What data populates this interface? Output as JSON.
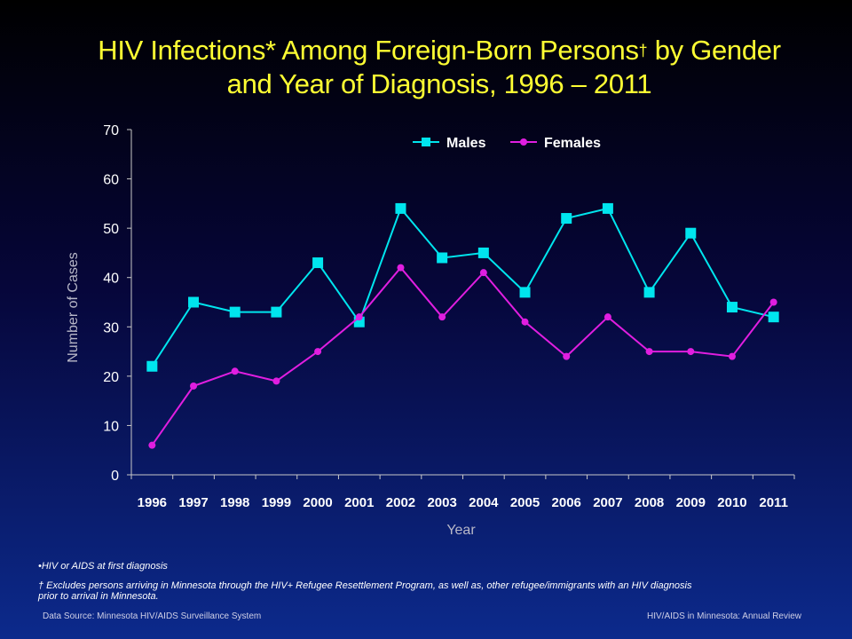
{
  "title": {
    "line1_pre": "HIV Infections* Among Foreign-Born Persons",
    "dagger": "†",
    "line1_post": " by Gender",
    "line2": "and Year of Diagnosis, 1996 – 2011"
  },
  "chart_data": {
    "type": "line",
    "xlabel": "Year",
    "ylabel": "Number of Cases",
    "ylim": [
      0,
      70
    ],
    "yticks": [
      0,
      10,
      20,
      30,
      40,
      50,
      60,
      70
    ],
    "categories": [
      "1996",
      "1997",
      "1998",
      "1999",
      "2000",
      "2001",
      "2002",
      "2003",
      "2004",
      "2005",
      "2006",
      "2007",
      "2008",
      "2009",
      "2010",
      "2011"
    ],
    "legend_position": "top-center",
    "grid": false,
    "series": [
      {
        "name": "Males",
        "color": "#00e5ee",
        "marker": "square",
        "values": [
          22,
          35,
          33,
          33,
          43,
          31,
          54,
          44,
          45,
          37,
          52,
          54,
          37,
          49,
          34,
          32
        ]
      },
      {
        "name": "Females",
        "color": "#e01ee0",
        "marker": "circle",
        "values": [
          6,
          18,
          21,
          19,
          25,
          32,
          42,
          32,
          41,
          31,
          24,
          32,
          25,
          25,
          24,
          35
        ]
      }
    ]
  },
  "notes": {
    "note1": "•HIV or AIDS at first diagnosis",
    "note2": "† Excludes persons arriving in Minnesota through the HIV+ Refugee Resettlement Program, as well as, other refugee/immigrants with an HIV diagnosis",
    "note2b": "prior to arrival in Minnesota."
  },
  "footer": {
    "source": "Data Source: Minnesota HIV/AIDS Surveillance System",
    "publication": "HIV/AIDS in Minnesota: Annual Review"
  }
}
